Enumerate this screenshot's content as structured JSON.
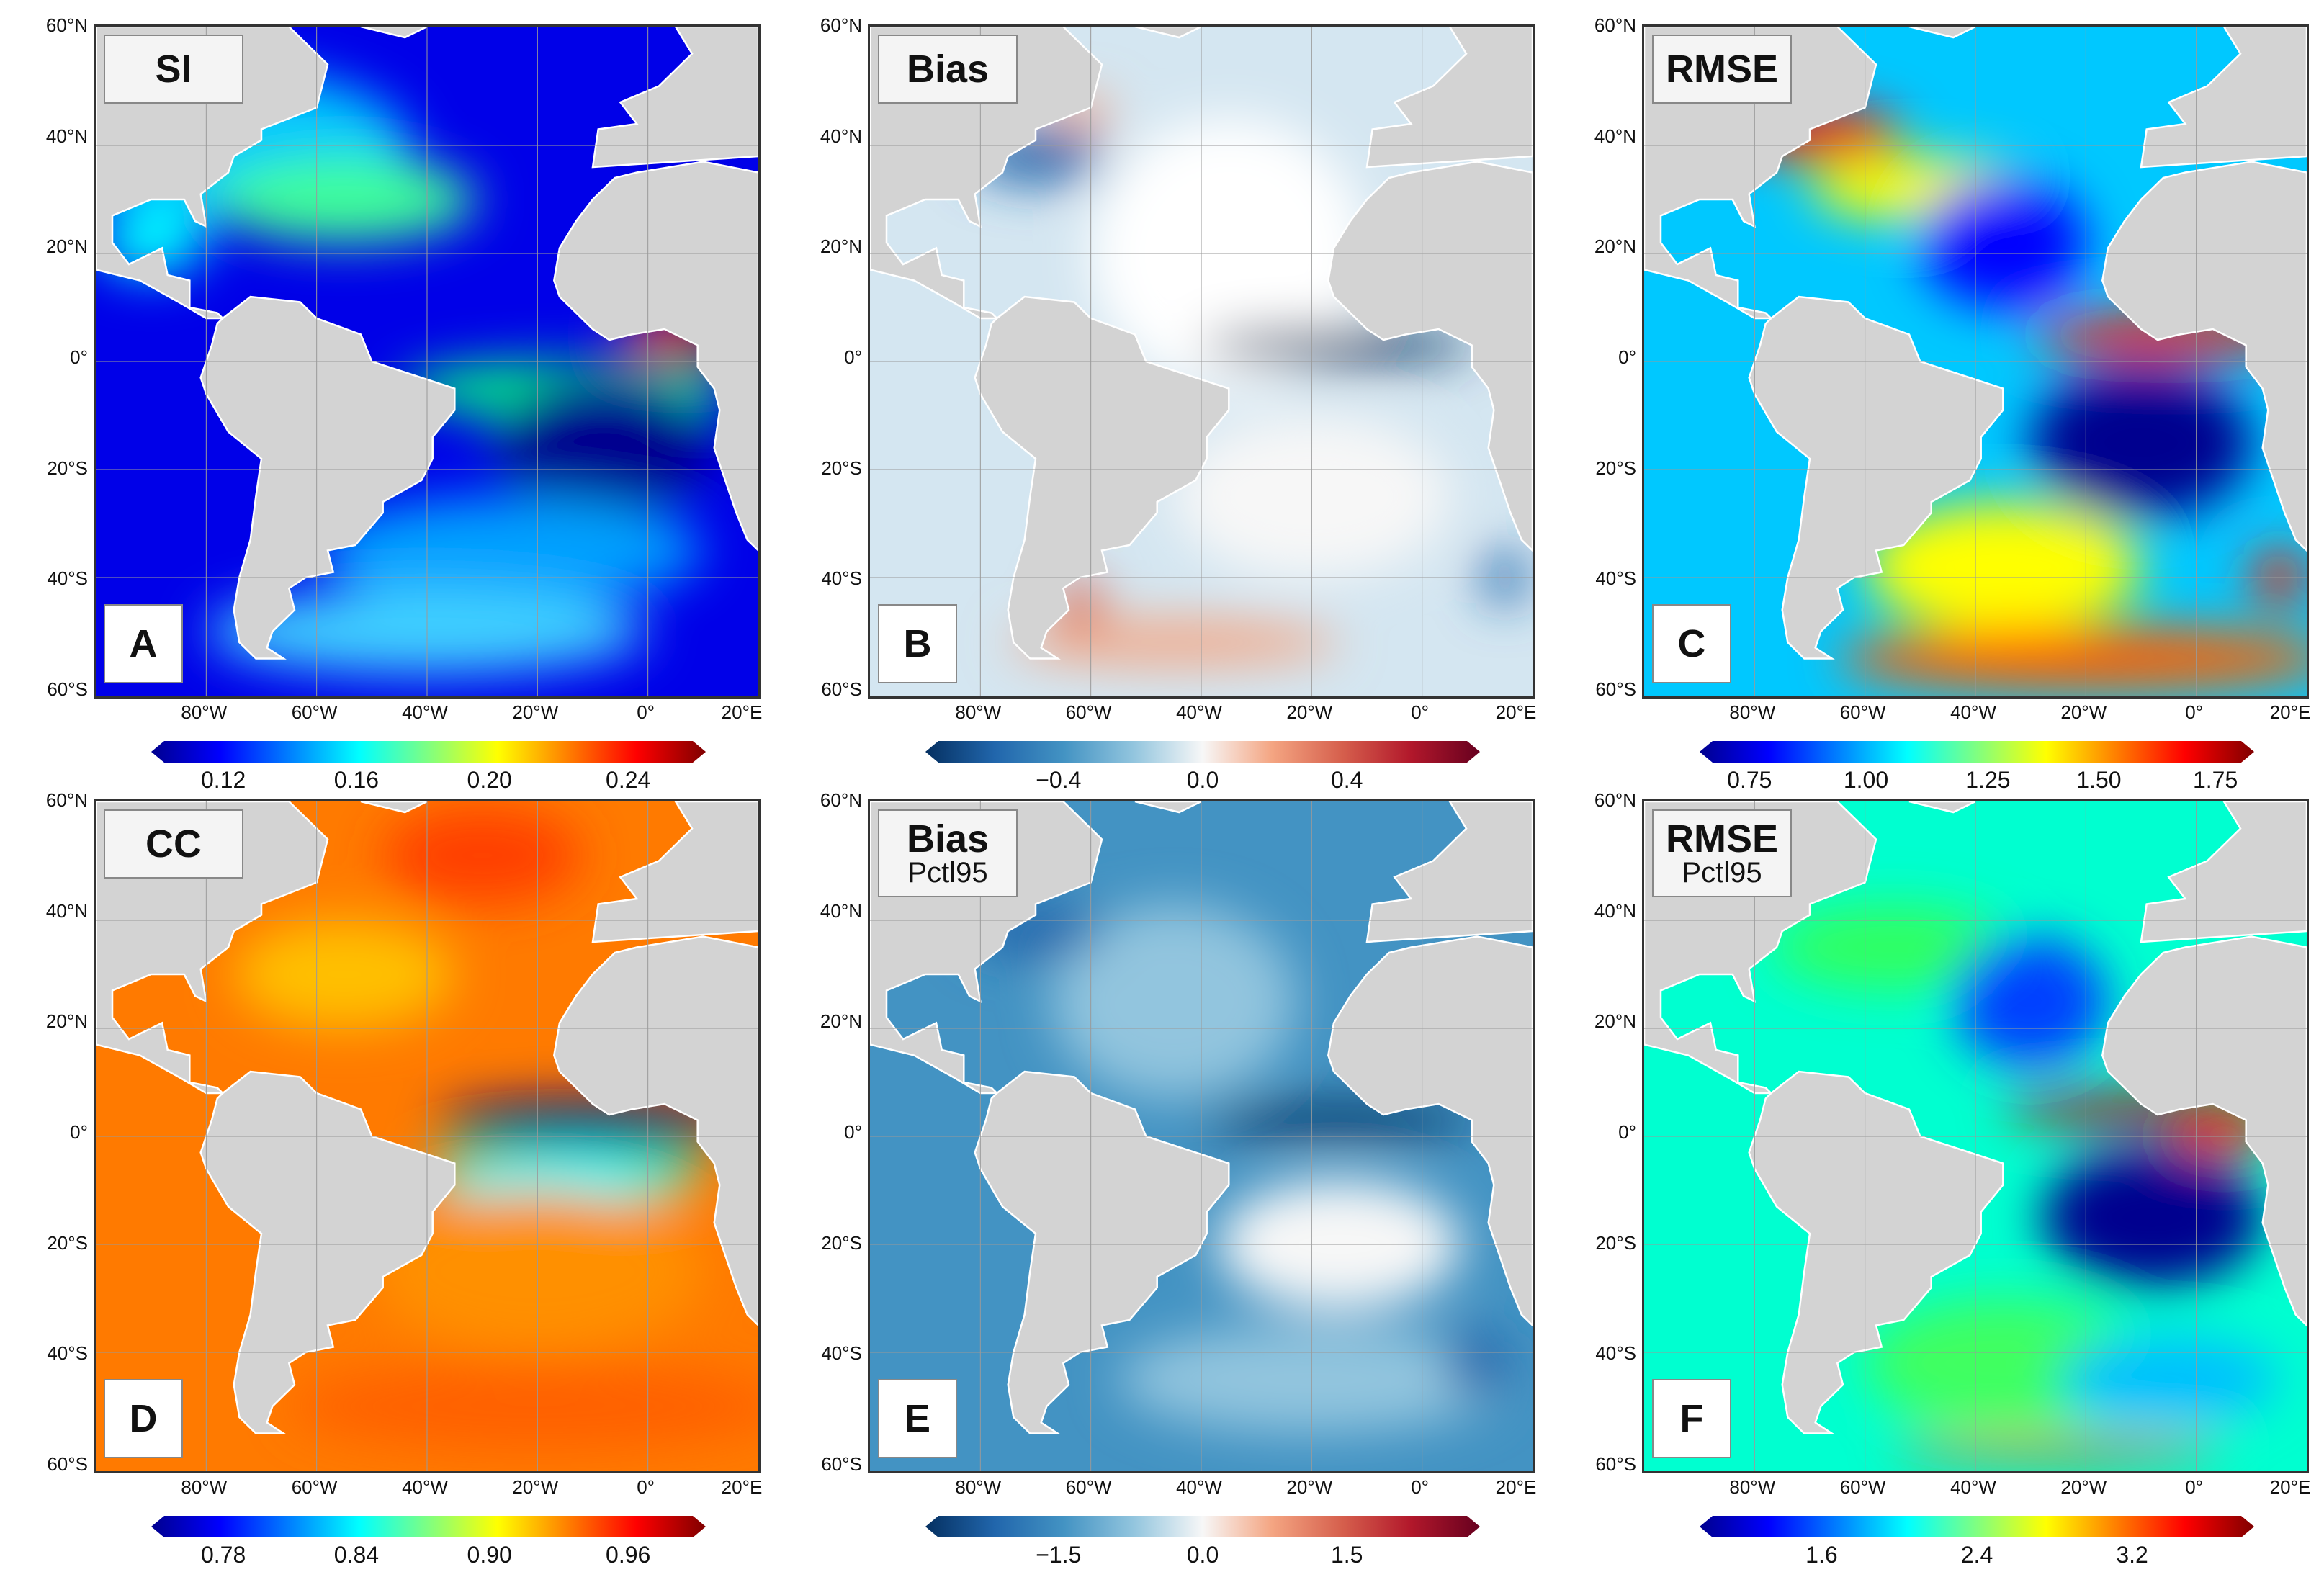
{
  "lat_labels": [
    "60°N",
    "40°N",
    "20°N",
    "0°",
    "20°S",
    "40°S",
    "60°S"
  ],
  "lon_labels": [
    "80°W",
    "60°W",
    "40°W",
    "20°W",
    "0°",
    "20°E"
  ],
  "panels": [
    {
      "id": "A",
      "title": "SI",
      "subtitle": "",
      "colormap": "jet",
      "ticks": [
        "0.12",
        "0.16",
        "0.20",
        "0.24"
      ]
    },
    {
      "id": "B",
      "title": "Bias",
      "subtitle": "",
      "colormap": "rdbu",
      "ticks": [
        "−0.4",
        "0.0",
        "0.4"
      ]
    },
    {
      "id": "C",
      "title": "RMSE",
      "subtitle": "",
      "colormap": "jet",
      "ticks": [
        "0.75",
        "1.00",
        "1.25",
        "1.50",
        "1.75"
      ]
    },
    {
      "id": "D",
      "title": "CC",
      "subtitle": "",
      "colormap": "jet",
      "ticks": [
        "0.78",
        "0.84",
        "0.90",
        "0.96"
      ]
    },
    {
      "id": "E",
      "title": "Bias",
      "subtitle": "Pctl95",
      "colormap": "rdbu",
      "ticks": [
        "−1.5",
        "0.0",
        "1.5"
      ]
    },
    {
      "id": "F",
      "title": "RMSE",
      "subtitle": "Pctl95",
      "colormap": "jet",
      "ticks": [
        "1.6",
        "2.4",
        "3.2"
      ]
    }
  ],
  "colors": {
    "land": "#d3d3d3",
    "jet": [
      "#00008f",
      "#0000ff",
      "#0080ff",
      "#00ffff",
      "#80ff80",
      "#ffff00",
      "#ff8000",
      "#ff0000",
      "#800000"
    ],
    "rdbu": [
      "#053061",
      "#2166ac",
      "#4393c3",
      "#92c5de",
      "#f7f7f7",
      "#f4a582",
      "#d6604d",
      "#b2182b",
      "#67001f"
    ]
  }
}
